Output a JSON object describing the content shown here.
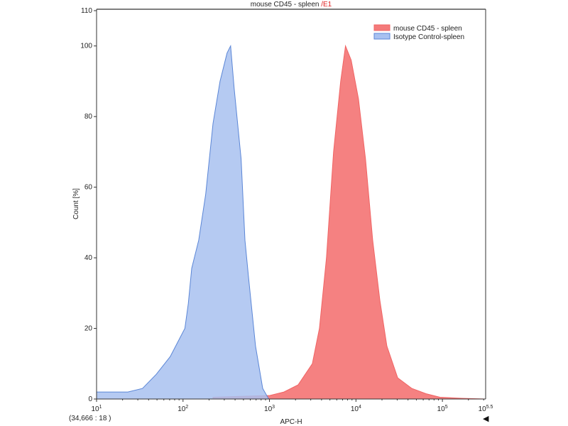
{
  "chart_data": {
    "type": "area",
    "title": "mouse CD45 - spleen",
    "title_suffix": "/E1",
    "xlabel": "APC-H",
    "ylabel": "Count [%]",
    "x_scale": "log",
    "xlim": [
      10,
      316228
    ],
    "ylim": [
      0,
      110
    ],
    "x_ticks": [
      {
        "v": 10,
        "base": "10",
        "exp": "1"
      },
      {
        "v": 100,
        "base": "10",
        "exp": "2"
      },
      {
        "v": 1000,
        "base": "10",
        "exp": "3"
      },
      {
        "v": 10000,
        "base": "10",
        "exp": "4"
      },
      {
        "v": 100000,
        "base": "10",
        "exp": "5"
      },
      {
        "v": 316228,
        "base": "10",
        "exp": "5.5"
      }
    ],
    "y_ticks": [
      0,
      20,
      40,
      60,
      80,
      100,
      110
    ],
    "legend_position": "top-right",
    "series": [
      {
        "name": "mouse CD45 - spleen",
        "color": "#f06464",
        "fill": "#f47a7a",
        "x": [
          222,
          1010,
          1470,
          2140,
          3130,
          3780,
          4560,
          5510,
          6650,
          7570,
          8800,
          10700,
          12900,
          15600,
          18900,
          22800,
          30400,
          44300,
          64500,
          93800,
          167000,
          316000
        ],
        "y": [
          0.5,
          1,
          2,
          4,
          10,
          20,
          40,
          70,
          90,
          100,
          96,
          85,
          68,
          45,
          28,
          15,
          6,
          3,
          1.5,
          0.5,
          0.2,
          0
        ]
      },
      {
        "name": "Isotype Control-spleen",
        "color": "#5b86d6",
        "fill": "#a8c1f0",
        "x": [
          10,
          23,
          34,
          49,
          71,
          105,
          115,
          126,
          152,
          183,
          222,
          268,
          323,
          355,
          390,
          470,
          520,
          570,
          690,
          835,
          980
        ],
        "y": [
          2,
          2,
          3,
          7,
          12,
          20,
          27,
          37,
          45,
          58,
          78,
          90,
          98,
          100,
          88,
          68,
          45,
          35,
          15,
          3,
          0
        ]
      }
    ]
  },
  "readout": "(34,666 : 18 )",
  "arrow_icon": "triangle-left"
}
